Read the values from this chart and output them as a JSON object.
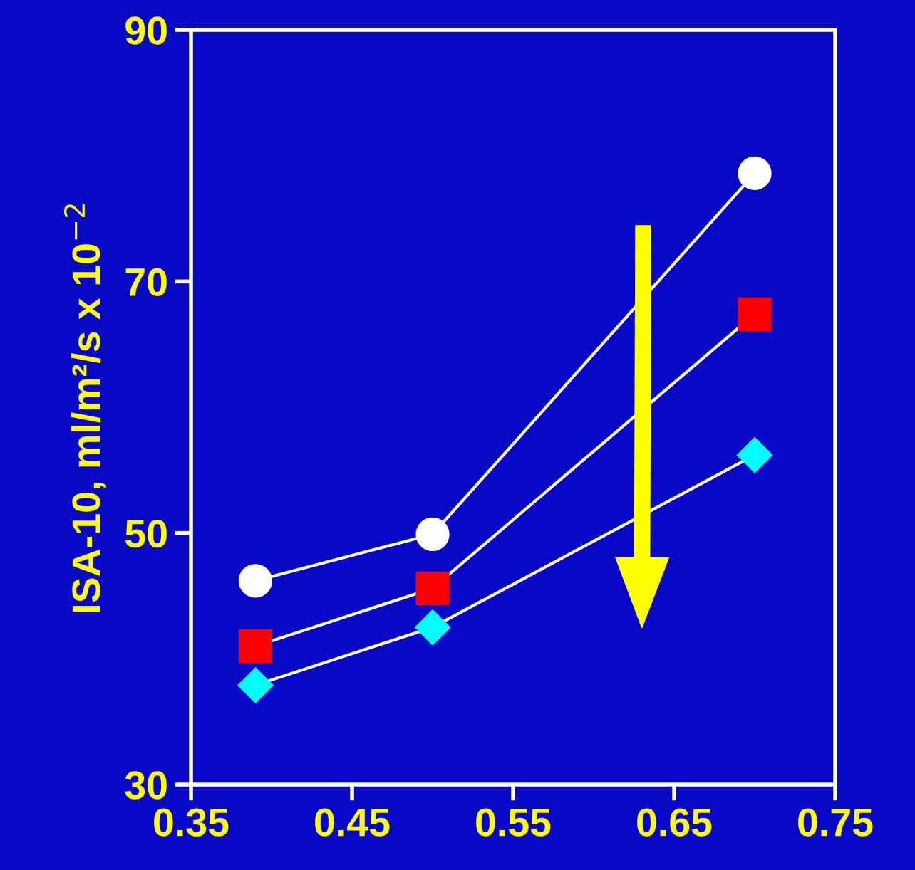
{
  "chart_data": {
    "type": "line",
    "ylabel": "ISA-10, ml/m²/s x 10$^{−2}$",
    "x": [
      0.39,
      0.5,
      0.7
    ],
    "series": [
      {
        "color": "#ffffff",
        "marker": "circle",
        "values": [
          46.2,
          49.9,
          78.6
        ]
      },
      {
        "color": "#ff0000",
        "marker": "square",
        "values": [
          41.0,
          45.6,
          67.4
        ]
      },
      {
        "color": "#00ffff",
        "marker": "diamond",
        "values": [
          37.9,
          42.5,
          56.2
        ]
      }
    ],
    "xlim": [
      0.35,
      0.75
    ],
    "xticks": [
      0.35,
      0.45,
      0.55,
      0.65,
      0.75
    ],
    "ylim": [
      30,
      90
    ],
    "yticks": [
      30,
      50,
      70,
      90
    ],
    "grid": false,
    "legend": false
  }
}
